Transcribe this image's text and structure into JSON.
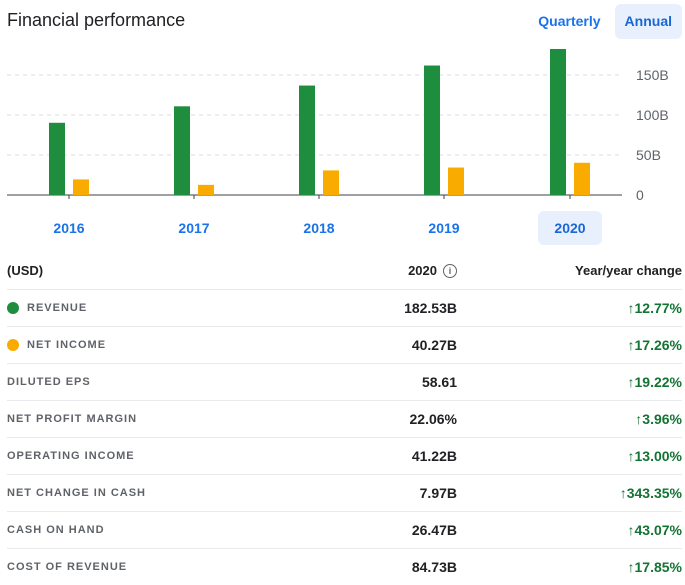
{
  "header": {
    "title": "Financial performance",
    "toggle": [
      "Quarterly",
      "Annual"
    ],
    "active_toggle": "Annual"
  },
  "chart_data": {
    "type": "bar",
    "categories": [
      "2016",
      "2017",
      "2018",
      "2019",
      "2020"
    ],
    "selected_category": "2020",
    "series": [
      {
        "name": "Revenue",
        "color": "#1e8e3e",
        "values": [
          90.27,
          110.86,
          136.82,
          161.86,
          182.53
        ]
      },
      {
        "name": "Net income",
        "color": "#f9ab00",
        "values": [
          19.48,
          12.66,
          30.74,
          34.34,
          40.27
        ]
      }
    ],
    "y_ticks": [
      "0",
      "50B",
      "100B",
      "150B"
    ],
    "ylim": [
      0,
      180
    ],
    "grid": true
  },
  "table": {
    "head": {
      "label": "(USD)",
      "period": "2020",
      "change": "Year/year change"
    },
    "rows": [
      {
        "metric": "REVENUE",
        "dot": "#1e8e3e",
        "value": "182.53B",
        "change": "12.77%"
      },
      {
        "metric": "NET INCOME",
        "dot": "#f9ab00",
        "value": "40.27B",
        "change": "17.26%"
      },
      {
        "metric": "DILUTED EPS",
        "value": "58.61",
        "change": "19.22%"
      },
      {
        "metric": "NET PROFIT MARGIN",
        "value": "22.06%",
        "change": "3.96%"
      },
      {
        "metric": "OPERATING INCOME",
        "value": "41.22B",
        "change": "13.00%"
      },
      {
        "metric": "NET CHANGE IN CASH",
        "value": "7.97B",
        "change": "343.35%"
      },
      {
        "metric": "CASH ON HAND",
        "value": "26.47B",
        "change": "43.07%"
      },
      {
        "metric": "COST OF REVENUE",
        "value": "84.73B",
        "change": "17.85%"
      }
    ]
  }
}
